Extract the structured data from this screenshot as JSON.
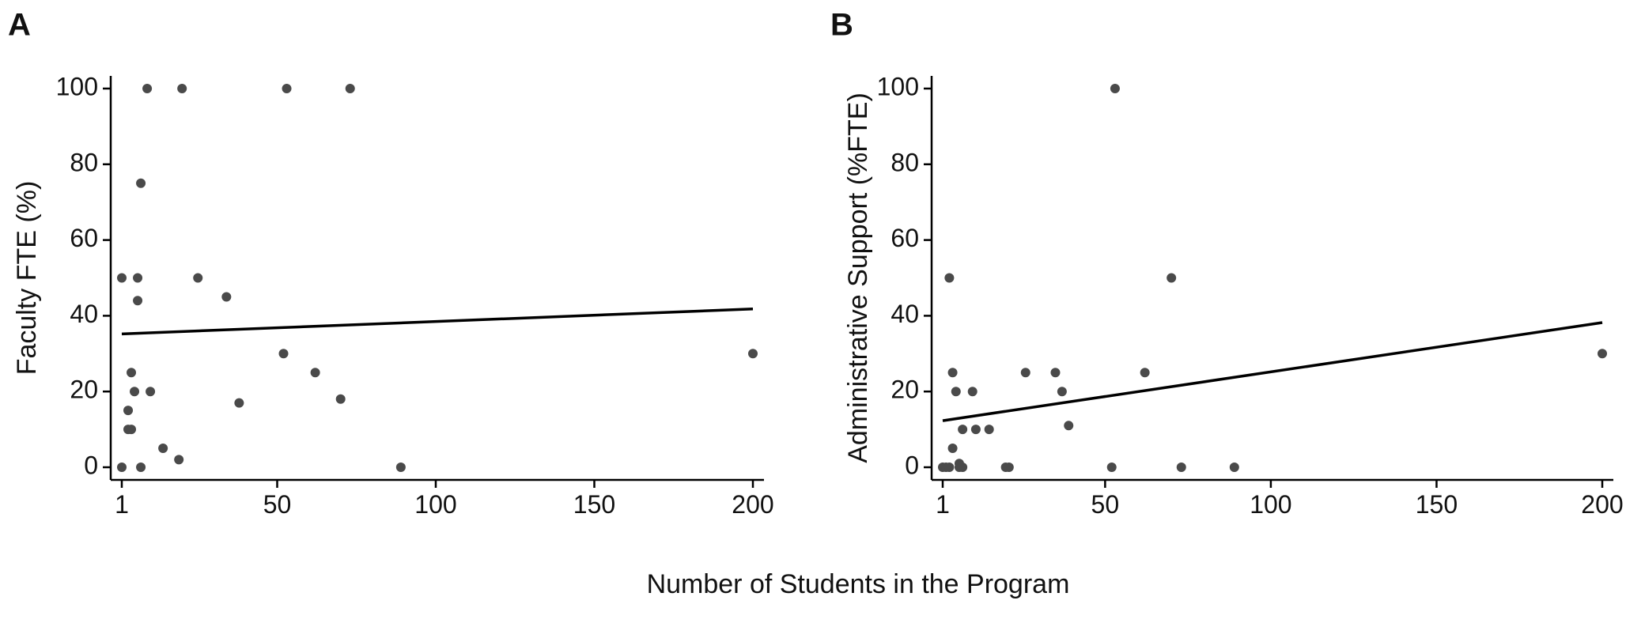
{
  "shared_xlabel": "Number of Students in the Program",
  "chart_data": [
    {
      "type": "scatter",
      "panel": "A",
      "ylabel": "Faculty FTE (%)",
      "xlim": [
        1,
        200
      ],
      "ylim": [
        0,
        100
      ],
      "xticks": [
        1,
        50,
        100,
        150,
        200
      ],
      "yticks": [
        0,
        20,
        40,
        60,
        80,
        100
      ],
      "grid": false,
      "points": [
        {
          "x": 1,
          "y": 50
        },
        {
          "x": 1,
          "y": 0
        },
        {
          "x": 3,
          "y": 15
        },
        {
          "x": 3,
          "y": 10
        },
        {
          "x": 4,
          "y": 10
        },
        {
          "x": 4,
          "y": 25
        },
        {
          "x": 5,
          "y": 20
        },
        {
          "x": 6,
          "y": 50
        },
        {
          "x": 6,
          "y": 44
        },
        {
          "x": 7,
          "y": 75
        },
        {
          "x": 7,
          "y": 0
        },
        {
          "x": 9,
          "y": 100
        },
        {
          "x": 10,
          "y": 20
        },
        {
          "x": 14,
          "y": 5
        },
        {
          "x": 19,
          "y": 2
        },
        {
          "x": 20,
          "y": 100
        },
        {
          "x": 25,
          "y": 50
        },
        {
          "x": 34,
          "y": 45
        },
        {
          "x": 38,
          "y": 17
        },
        {
          "x": 52,
          "y": 30
        },
        {
          "x": 53,
          "y": 100
        },
        {
          "x": 62,
          "y": 25
        },
        {
          "x": 70,
          "y": 18
        },
        {
          "x": 73,
          "y": 100
        },
        {
          "x": 89,
          "y": 0
        },
        {
          "x": 200,
          "y": 30
        }
      ],
      "trendline": {
        "x": [
          1,
          200
        ],
        "y": [
          35.2,
          41.8
        ]
      }
    },
    {
      "type": "scatter",
      "panel": "B",
      "ylabel": "Administrative Support (%FTE)",
      "xlim": [
        1,
        200
      ],
      "ylim": [
        0,
        100
      ],
      "xticks": [
        1,
        50,
        100,
        150,
        200
      ],
      "yticks": [
        0,
        20,
        40,
        60,
        80,
        100
      ],
      "grid": false,
      "points": [
        {
          "x": 1,
          "y": 0
        },
        {
          "x": 2,
          "y": 0
        },
        {
          "x": 3,
          "y": 50
        },
        {
          "x": 3,
          "y": 0
        },
        {
          "x": 4,
          "y": 25
        },
        {
          "x": 4,
          "y": 5
        },
        {
          "x": 5,
          "y": 20
        },
        {
          "x": 6,
          "y": 1
        },
        {
          "x": 6,
          "y": 0
        },
        {
          "x": 7,
          "y": 0
        },
        {
          "x": 7,
          "y": 10
        },
        {
          "x": 10,
          "y": 20
        },
        {
          "x": 11,
          "y": 10
        },
        {
          "x": 15,
          "y": 10
        },
        {
          "x": 20,
          "y": 0
        },
        {
          "x": 21,
          "y": 0
        },
        {
          "x": 26,
          "y": 25
        },
        {
          "x": 35,
          "y": 25
        },
        {
          "x": 37,
          "y": 20
        },
        {
          "x": 39,
          "y": 11
        },
        {
          "x": 52,
          "y": 0
        },
        {
          "x": 53,
          "y": 100
        },
        {
          "x": 62,
          "y": 25
        },
        {
          "x": 70,
          "y": 50
        },
        {
          "x": 73,
          "y": 0
        },
        {
          "x": 89,
          "y": 0
        },
        {
          "x": 200,
          "y": 30
        }
      ],
      "trendline": {
        "x": [
          1,
          200
        ],
        "y": [
          12.3,
          38.2
        ]
      }
    }
  ]
}
